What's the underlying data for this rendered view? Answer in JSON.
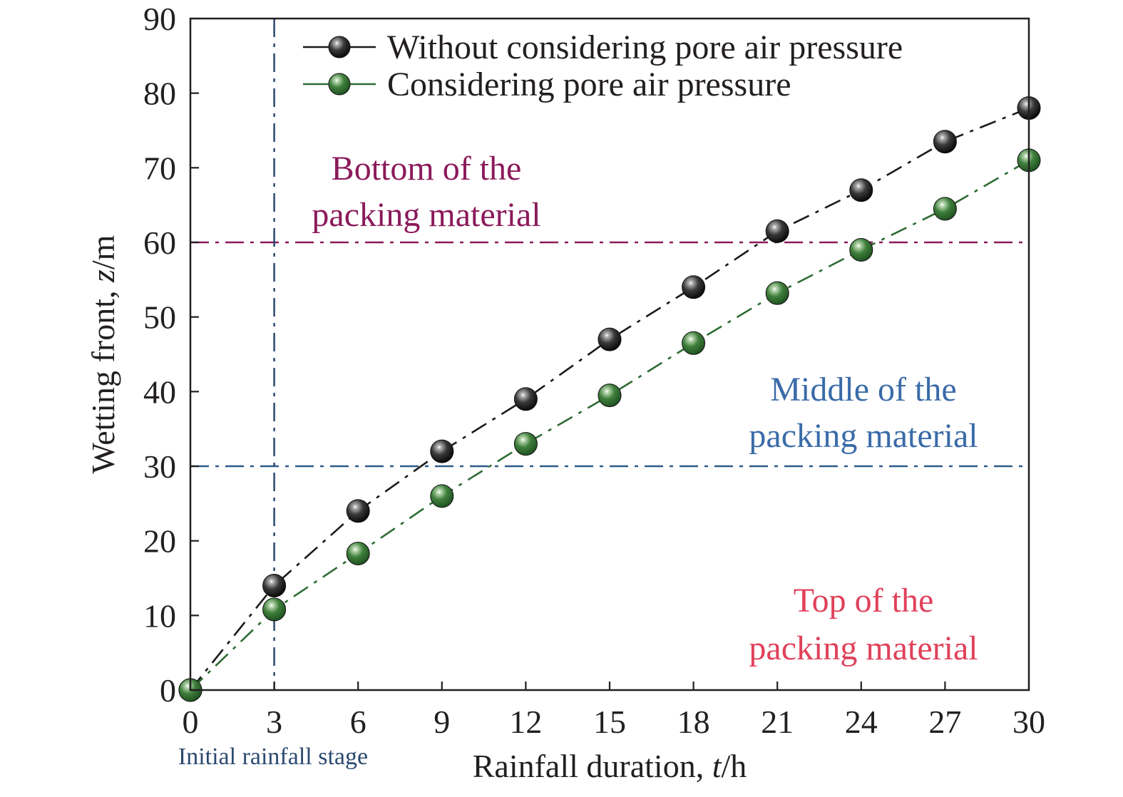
{
  "chart_data": {
    "type": "line",
    "xlabel_main": "Rainfall duration, ",
    "xlabel_var": "t",
    "xlabel_unit": "/h",
    "ylabel_main": "Wetting front, ",
    "ylabel_var": "z",
    "ylabel_unit": "/m",
    "xlim": [
      0,
      30
    ],
    "ylim": [
      0,
      90
    ],
    "x_ticks": [
      0,
      3,
      6,
      9,
      12,
      15,
      18,
      21,
      24,
      27,
      30
    ],
    "y_ticks": [
      0,
      10,
      20,
      30,
      40,
      50,
      60,
      70,
      80,
      90
    ],
    "x": [
      0,
      3,
      6,
      9,
      12,
      15,
      18,
      21,
      24,
      27,
      30
    ],
    "series": [
      {
        "name": "Without considering pore air pressure",
        "color": "#1a1a1a",
        "values": [
          0,
          14,
          24,
          32,
          39,
          47,
          54,
          61.5,
          67,
          73.5,
          78
        ]
      },
      {
        "name": "Considering pore air pressure",
        "color": "#2e6b33",
        "values": [
          0,
          10.8,
          18.3,
          26,
          33,
          39.5,
          46.5,
          53.2,
          59,
          64.5,
          71
        ]
      }
    ],
    "legend_position": "top-right",
    "reference_lines": [
      {
        "orientation": "horizontal",
        "value": 60,
        "color": "#8b1a5a"
      },
      {
        "orientation": "horizontal",
        "value": 30,
        "color": "#2c5a8a"
      },
      {
        "orientation": "vertical",
        "value": 3,
        "color": "#2c4a70"
      }
    ],
    "annotations": [
      {
        "lines": [
          "Bottom of the",
          "packing material"
        ],
        "color": "#8b1a5a"
      },
      {
        "lines": [
          "Middle of the",
          "packing material"
        ],
        "color": "#3a6ba8"
      },
      {
        "lines": [
          "Top of the",
          "packing material"
        ],
        "color": "#e0415a"
      },
      {
        "lines": [
          "Initial rainfall stage"
        ],
        "color": "#2c4a70"
      }
    ]
  }
}
